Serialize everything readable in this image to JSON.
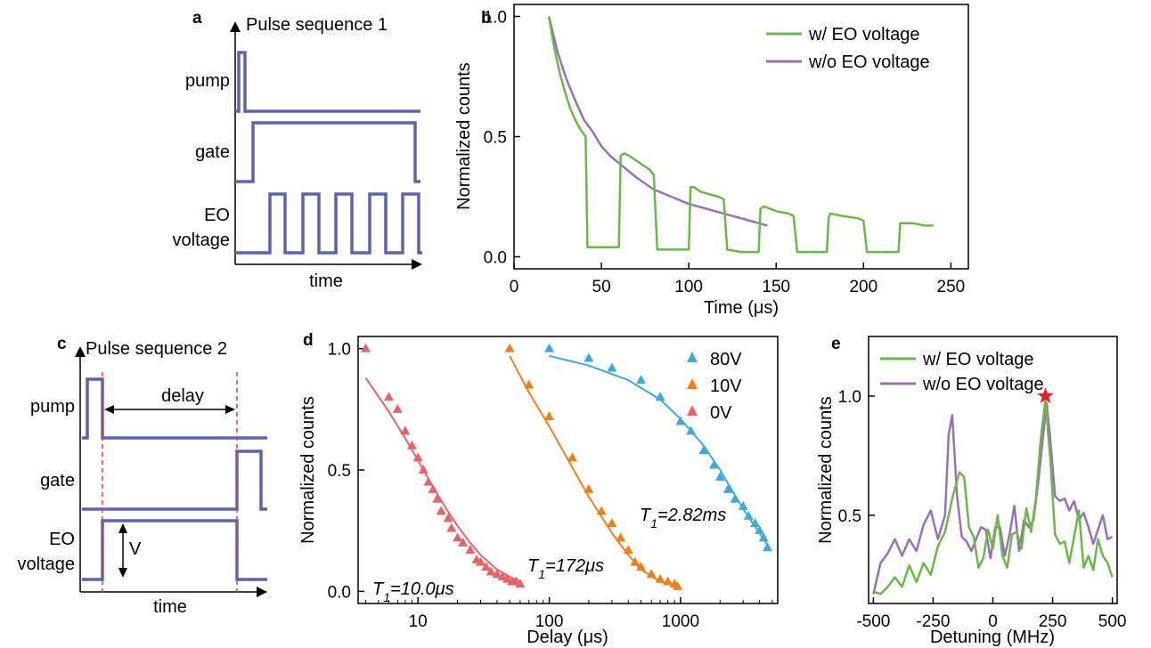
{
  "panels": {
    "a": {
      "letter": "a",
      "title": "Pulse sequence 1",
      "rows": [
        "pump",
        "gate",
        "EO",
        "voltage"
      ],
      "xlabel": "time"
    },
    "c": {
      "letter": "c",
      "title": "Pulse sequence 2",
      "rows": [
        "pump",
        "gate",
        "EO",
        "voltage"
      ],
      "delay_label": "delay",
      "v_label": "V",
      "xlabel": "time"
    }
  },
  "colors": {
    "pulse": "#5a64b4",
    "with_eo": "#6ab946",
    "without_eo": "#9b6fb8",
    "v80": "#3fa8dc",
    "v10": "#f07f1b",
    "v0": "#e5636a",
    "dashed_marker": "#e03c3c",
    "star": "#e8202a"
  },
  "chart_data": [
    {
      "panel": "b",
      "type": "line",
      "xlabel": "Time (μs)",
      "ylabel": "Normalized counts",
      "xlim": [
        0,
        260
      ],
      "ylim": [
        -0.05,
        1.05
      ],
      "xticks": [
        0,
        50,
        100,
        150,
        200,
        250
      ],
      "yticks": [
        0.0,
        0.5,
        1.0
      ],
      "legend_position": "top-right",
      "series": [
        {
          "name": "w/ EO voltage",
          "x": [
            20,
            23,
            26,
            29,
            32,
            35,
            38,
            41,
            42,
            45,
            50,
            55,
            60,
            61,
            63,
            66,
            70,
            74,
            78,
            80,
            82,
            88,
            95,
            100,
            101,
            103,
            107,
            112,
            117,
            120,
            122,
            130,
            138,
            140,
            141,
            143,
            150,
            157,
            160,
            162,
            170,
            179,
            180,
            181,
            188,
            197,
            200,
            202,
            210,
            218,
            220,
            221,
            228,
            235,
            240
          ],
          "y": [
            1.0,
            0.87,
            0.77,
            0.69,
            0.62,
            0.57,
            0.53,
            0.5,
            0.04,
            0.04,
            0.04,
            0.04,
            0.04,
            0.42,
            0.43,
            0.42,
            0.4,
            0.38,
            0.36,
            0.34,
            0.03,
            0.03,
            0.03,
            0.03,
            0.29,
            0.29,
            0.27,
            0.26,
            0.25,
            0.24,
            0.03,
            0.02,
            0.02,
            0.02,
            0.2,
            0.21,
            0.19,
            0.18,
            0.17,
            0.02,
            0.02,
            0.02,
            0.16,
            0.18,
            0.17,
            0.16,
            0.15,
            0.02,
            0.02,
            0.02,
            0.02,
            0.14,
            0.14,
            0.13,
            0.13
          ]
        },
        {
          "name": "w/o EO voltage",
          "x": [
            20,
            25,
            30,
            35,
            40,
            45,
            50,
            55,
            60,
            70,
            80,
            90,
            100,
            110,
            120,
            130,
            140,
            145
          ],
          "y": [
            1.0,
            0.85,
            0.74,
            0.65,
            0.57,
            0.52,
            0.46,
            0.42,
            0.39,
            0.33,
            0.28,
            0.25,
            0.22,
            0.2,
            0.18,
            0.16,
            0.14,
            0.13
          ]
        }
      ]
    },
    {
      "panel": "d",
      "type": "scatter",
      "xlabel": "Delay (μs)",
      "ylabel": "Normalized counts",
      "xscale": "log",
      "xlim": [
        3.5,
        5500
      ],
      "ylim": [
        -0.05,
        1.05
      ],
      "xticks": [
        10,
        100,
        1000
      ],
      "yticks": [
        0.0,
        0.5,
        1.0
      ],
      "legend_position": "top-right",
      "series": [
        {
          "name": "80V",
          "x": [
            100,
            200,
            300,
            500,
            700,
            1000,
            1200,
            1500,
            1800,
            2000,
            2300,
            2600,
            3000,
            3300,
            3700,
            4000,
            4300,
            4600
          ],
          "y": [
            1.0,
            0.96,
            0.92,
            0.87,
            0.8,
            0.7,
            0.66,
            0.58,
            0.52,
            0.47,
            0.42,
            0.38,
            0.35,
            0.31,
            0.28,
            0.25,
            0.22,
            0.18
          ],
          "fit_x": [
            100,
            200,
            400,
            700,
            1000,
            1500,
            2000,
            3000,
            4600
          ],
          "fit_y": [
            0.97,
            0.93,
            0.87,
            0.79,
            0.71,
            0.6,
            0.5,
            0.34,
            0.19
          ],
          "annotation": "T1=2.82ms"
        },
        {
          "name": "10V",
          "x": [
            50,
            70,
            100,
            150,
            200,
            250,
            300,
            350,
            400,
            450,
            500,
            600,
            700,
            800,
            900,
            950
          ],
          "y": [
            1.0,
            0.85,
            0.72,
            0.55,
            0.42,
            0.33,
            0.28,
            0.22,
            0.17,
            0.12,
            0.1,
            0.07,
            0.05,
            0.04,
            0.03,
            0.02
          ],
          "fit_x": [
            50,
            70,
            100,
            150,
            200,
            300,
            400,
            500,
            700,
            950
          ],
          "fit_y": [
            0.97,
            0.82,
            0.68,
            0.51,
            0.39,
            0.24,
            0.15,
            0.09,
            0.04,
            0.02
          ],
          "annotation": "T1=172μs"
        },
        {
          "name": "0V",
          "x": [
            4,
            6,
            7,
            8,
            9,
            10,
            11,
            12,
            13,
            14,
            15,
            17,
            18,
            20,
            22,
            25,
            28,
            30,
            33,
            36,
            40,
            44,
            48,
            52,
            56,
            60
          ],
          "y": [
            1.0,
            0.8,
            0.75,
            0.66,
            0.6,
            0.55,
            0.5,
            0.45,
            0.42,
            0.38,
            0.33,
            0.3,
            0.26,
            0.22,
            0.2,
            0.17,
            0.13,
            0.12,
            0.1,
            0.08,
            0.07,
            0.06,
            0.05,
            0.04,
            0.04,
            0.03
          ],
          "fit_x": [
            4,
            6,
            8,
            10,
            13,
            16,
            20,
            25,
            30,
            40,
            50,
            60
          ],
          "fit_y": [
            0.88,
            0.74,
            0.63,
            0.54,
            0.43,
            0.35,
            0.27,
            0.2,
            0.15,
            0.09,
            0.06,
            0.04
          ],
          "annotation": "T1=10.0μs"
        }
      ]
    },
    {
      "panel": "e",
      "type": "line",
      "xlabel": "Detuning (MHz)",
      "ylabel": "Normalized counts",
      "xlim": [
        -520,
        520
      ],
      "ylim": [
        0.13,
        1.25
      ],
      "xticks": [
        -500,
        -250,
        0,
        250,
        500
      ],
      "yticks": [
        0.5,
        1.0
      ],
      "legend_position": "top-left",
      "series": [
        {
          "name": "w/ EO voltage",
          "x": [
            -500,
            -470,
            -440,
            -410,
            -380,
            -350,
            -320,
            -290,
            -260,
            -230,
            -200,
            -170,
            -140,
            -120,
            -100,
            -80,
            -60,
            -40,
            -20,
            0,
            20,
            40,
            60,
            80,
            100,
            120,
            140,
            160,
            180,
            200,
            220,
            240,
            260,
            280,
            300,
            320,
            340,
            360,
            380,
            400,
            420,
            440,
            460,
            480,
            500
          ],
          "y": [
            0.18,
            0.17,
            0.2,
            0.24,
            0.2,
            0.29,
            0.22,
            0.3,
            0.25,
            0.37,
            0.43,
            0.57,
            0.68,
            0.66,
            0.45,
            0.41,
            0.28,
            0.32,
            0.44,
            0.36,
            0.5,
            0.33,
            0.28,
            0.42,
            0.43,
            0.36,
            0.53,
            0.43,
            0.57,
            0.82,
            0.98,
            0.74,
            0.42,
            0.38,
            0.39,
            0.3,
            0.41,
            0.52,
            0.28,
            0.33,
            0.27,
            0.4,
            0.33,
            0.3,
            0.24
          ]
        },
        {
          "name": "w/o EO voltage",
          "x": [
            -500,
            -470,
            -440,
            -410,
            -380,
            -350,
            -320,
            -290,
            -260,
            -230,
            -200,
            -185,
            -170,
            -150,
            -130,
            -110,
            -90,
            -70,
            -50,
            -30,
            -10,
            10,
            30,
            50,
            70,
            90,
            110,
            130,
            150,
            170,
            190,
            210,
            225,
            240,
            260,
            280,
            300,
            320,
            340,
            360,
            380,
            400,
            420,
            440,
            460,
            480,
            500
          ],
          "y": [
            0.17,
            0.3,
            0.34,
            0.4,
            0.33,
            0.4,
            0.35,
            0.46,
            0.52,
            0.4,
            0.5,
            0.84,
            0.92,
            0.58,
            0.41,
            0.39,
            0.35,
            0.4,
            0.45,
            0.44,
            0.32,
            0.45,
            0.45,
            0.33,
            0.42,
            0.54,
            0.35,
            0.48,
            0.45,
            0.48,
            0.64,
            0.83,
            0.97,
            0.82,
            0.58,
            0.56,
            0.57,
            0.52,
            0.56,
            0.48,
            0.51,
            0.45,
            0.38,
            0.44,
            0.5,
            0.4,
            0.41
          ]
        }
      ],
      "marker": {
        "x": 220,
        "y": 1.0,
        "shape": "star"
      }
    }
  ]
}
